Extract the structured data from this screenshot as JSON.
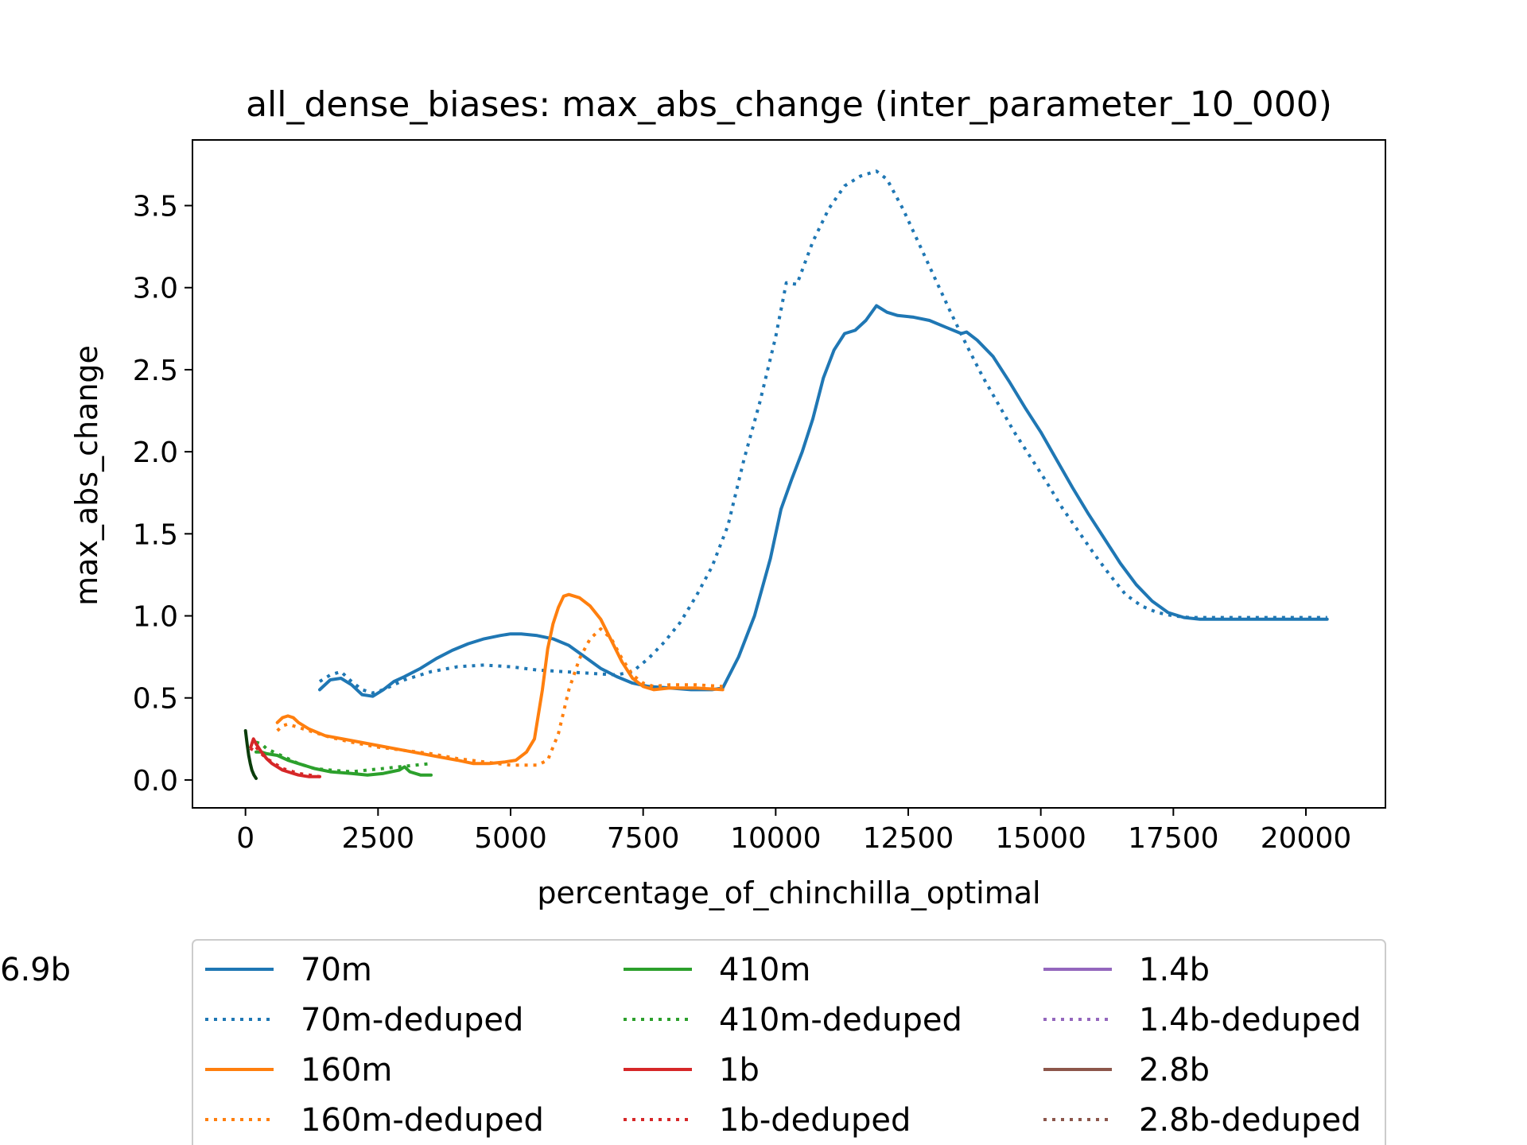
{
  "chart_data": {
    "type": "line",
    "title": "all_dense_biases: max_abs_change (inter_parameter_10_000)",
    "xlabel": "percentage_of_chinchilla_optimal",
    "ylabel": "max_abs_change",
    "xlim": [
      -1000,
      21500
    ],
    "ylim": [
      -0.17,
      3.9
    ],
    "xticks": [
      0,
      2500,
      5000,
      7500,
      10000,
      12500,
      15000,
      17500,
      20000
    ],
    "yticks": [
      0.0,
      0.5,
      1.0,
      1.5,
      2.0,
      2.5,
      3.0,
      3.5
    ],
    "xtick_labels": [
      "0",
      "2500",
      "5000",
      "7500",
      "10000",
      "12500",
      "15000",
      "17500",
      "20000"
    ],
    "ytick_labels": [
      "0.0",
      "0.5",
      "1.0",
      "1.5",
      "2.0",
      "2.5",
      "3.0",
      "3.5"
    ],
    "grid": false,
    "legend_placement": "below plot, 3 columns",
    "series": [
      {
        "name": "70m",
        "color": "#1f77b4",
        "style": "solid",
        "x": [
          1400,
          1600,
          1800,
          2000,
          2200,
          2400,
          2600,
          2800,
          3000,
          3300,
          3600,
          3900,
          4200,
          4500,
          4800,
          5000,
          5200,
          5500,
          5800,
          6100,
          6400,
          6700,
          7000,
          7300,
          7600,
          8000,
          8400,
          8800,
          9000,
          9300,
          9600,
          9900,
          10100,
          10300,
          10500,
          10700,
          10900,
          11100,
          11300,
          11500,
          11700,
          11900,
          12100,
          12300,
          12600,
          12900,
          13200,
          13500,
          13600,
          13800,
          14100,
          14400,
          14700,
          15000,
          15300,
          15600,
          15900,
          16200,
          16500,
          16800,
          17100,
          17400,
          17700,
          18000,
          18500,
          19000,
          19500,
          20000,
          20400
        ],
        "y": [
          0.55,
          0.61,
          0.62,
          0.58,
          0.52,
          0.51,
          0.55,
          0.6,
          0.63,
          0.68,
          0.74,
          0.79,
          0.83,
          0.86,
          0.88,
          0.89,
          0.89,
          0.88,
          0.86,
          0.82,
          0.75,
          0.68,
          0.63,
          0.59,
          0.57,
          0.56,
          0.55,
          0.55,
          0.56,
          0.75,
          1.0,
          1.35,
          1.65,
          1.83,
          2.0,
          2.2,
          2.45,
          2.62,
          2.72,
          2.74,
          2.8,
          2.89,
          2.85,
          2.83,
          2.82,
          2.8,
          2.76,
          2.72,
          2.73,
          2.68,
          2.58,
          2.43,
          2.27,
          2.12,
          1.95,
          1.78,
          1.62,
          1.47,
          1.32,
          1.19,
          1.09,
          1.02,
          0.99,
          0.98,
          0.98,
          0.98,
          0.98,
          0.98,
          0.98
        ]
      },
      {
        "name": "70m-deduped",
        "color": "#1f77b4",
        "style": "dotted",
        "x": [
          1400,
          1600,
          1800,
          2000,
          2200,
          2400,
          2600,
          2800,
          3000,
          3500,
          4000,
          4500,
          5000,
          5500,
          6000,
          6500,
          7000,
          7300,
          7600,
          7900,
          8200,
          8500,
          8800,
          9100,
          9400,
          9700,
          10000,
          10200,
          10400,
          10700,
          11000,
          11300,
          11600,
          11900,
          12100,
          12400,
          12700,
          13000,
          13300,
          13600,
          13900,
          14200,
          14500,
          14800,
          15100,
          15400,
          15700,
          16000,
          16300,
          16600,
          16900,
          17200,
          17500,
          17800,
          18200,
          18800,
          19500,
          20000,
          20400
        ],
        "y": [
          0.6,
          0.64,
          0.66,
          0.6,
          0.55,
          0.53,
          0.55,
          0.58,
          0.61,
          0.66,
          0.69,
          0.7,
          0.69,
          0.67,
          0.66,
          0.65,
          0.64,
          0.66,
          0.74,
          0.84,
          0.96,
          1.12,
          1.3,
          1.55,
          1.95,
          2.3,
          2.7,
          3.03,
          3.02,
          3.28,
          3.48,
          3.62,
          3.68,
          3.71,
          3.66,
          3.48,
          3.27,
          3.06,
          2.85,
          2.65,
          2.46,
          2.29,
          2.12,
          1.97,
          1.82,
          1.66,
          1.52,
          1.38,
          1.25,
          1.13,
          1.06,
          1.02,
          1.0,
          0.99,
          0.99,
          0.99,
          0.99,
          0.99,
          0.99
        ]
      },
      {
        "name": "160m",
        "color": "#ff7f0e",
        "style": "solid",
        "x": [
          600,
          700,
          800,
          900,
          1000,
          1200,
          1500,
          2000,
          2500,
          3000,
          3500,
          4000,
          4300,
          4600,
          4900,
          5100,
          5300,
          5450,
          5600,
          5700,
          5800,
          5900,
          6000,
          6100,
          6300,
          6500,
          6700,
          6900,
          7100,
          7300,
          7500,
          7700,
          8000,
          8500,
          9000
        ],
        "y": [
          0.35,
          0.38,
          0.39,
          0.38,
          0.35,
          0.31,
          0.27,
          0.24,
          0.21,
          0.18,
          0.15,
          0.12,
          0.1,
          0.1,
          0.11,
          0.12,
          0.17,
          0.25,
          0.55,
          0.8,
          0.95,
          1.05,
          1.12,
          1.13,
          1.11,
          1.06,
          0.98,
          0.85,
          0.72,
          0.62,
          0.57,
          0.55,
          0.56,
          0.56,
          0.55
        ]
      },
      {
        "name": "160m-deduped",
        "color": "#ff7f0e",
        "style": "dotted",
        "x": [
          600,
          700,
          800,
          900,
          1200,
          1600,
          2000,
          2500,
          3000,
          3500,
          4000,
          4500,
          5000,
          5500,
          5700,
          5900,
          6100,
          6300,
          6500,
          6700,
          6900,
          7100,
          7300,
          7500,
          7700,
          8000,
          8500,
          9000
        ],
        "y": [
          0.3,
          0.33,
          0.34,
          0.33,
          0.3,
          0.26,
          0.23,
          0.2,
          0.18,
          0.16,
          0.13,
          0.11,
          0.09,
          0.09,
          0.12,
          0.28,
          0.55,
          0.74,
          0.86,
          0.92,
          0.86,
          0.74,
          0.64,
          0.59,
          0.57,
          0.58,
          0.58,
          0.57
        ]
      },
      {
        "name": "410m",
        "color": "#2ca02c",
        "style": "solid",
        "x": [
          200,
          300,
          400,
          600,
          800,
          1000,
          1300,
          1600,
          2000,
          2300,
          2600,
          2900,
          3000,
          3100,
          3300,
          3500
        ],
        "y": [
          0.17,
          0.17,
          0.16,
          0.15,
          0.12,
          0.1,
          0.07,
          0.05,
          0.04,
          0.03,
          0.04,
          0.06,
          0.08,
          0.05,
          0.03,
          0.03
        ]
      },
      {
        "name": "410m-deduped",
        "color": "#2ca02c",
        "style": "dotted",
        "x": [
          200,
          300,
          400,
          600,
          800,
          1000,
          1300,
          1600,
          2000,
          2300,
          2600,
          2900,
          3200,
          3500
        ],
        "y": [
          0.23,
          0.22,
          0.19,
          0.16,
          0.13,
          0.1,
          0.07,
          0.06,
          0.05,
          0.06,
          0.07,
          0.08,
          0.09,
          0.1
        ]
      },
      {
        "name": "1b",
        "color": "#d62728",
        "style": "solid",
        "x": [
          100,
          150,
          200,
          300,
          400,
          500,
          600,
          700,
          800,
          900,
          1000,
          1200,
          1400
        ],
        "y": [
          0.2,
          0.25,
          0.22,
          0.17,
          0.13,
          0.1,
          0.08,
          0.06,
          0.05,
          0.04,
          0.03,
          0.02,
          0.02
        ]
      },
      {
        "name": "1b-deduped",
        "color": "#d62728",
        "style": "dotted",
        "x": [
          100,
          150,
          200,
          300,
          400,
          500,
          600,
          700,
          800,
          900,
          1000,
          1200,
          1400
        ],
        "y": [
          0.18,
          0.21,
          0.2,
          0.16,
          0.13,
          0.11,
          0.09,
          0.07,
          0.06,
          0.05,
          0.04,
          0.03,
          0.02
        ]
      },
      {
        "name": "1.4b",
        "color": "#9467bd",
        "style": "solid",
        "x": [],
        "y": []
      },
      {
        "name": "1.4b-deduped",
        "color": "#9467bd",
        "style": "dotted",
        "x": [],
        "y": []
      },
      {
        "name": "2.8b",
        "color": "#8c564b",
        "style": "solid",
        "x": [],
        "y": []
      },
      {
        "name": "2.8b-deduped",
        "color": "#8c564b",
        "style": "dotted",
        "x": [],
        "y": []
      },
      {
        "name": "6.9b",
        "color": "#0b3d0b",
        "style": "solid",
        "x": [
          0,
          30,
          60,
          90,
          120,
          160,
          200
        ],
        "y": [
          0.3,
          0.22,
          0.15,
          0.1,
          0.06,
          0.03,
          0.01
        ]
      }
    ]
  }
}
